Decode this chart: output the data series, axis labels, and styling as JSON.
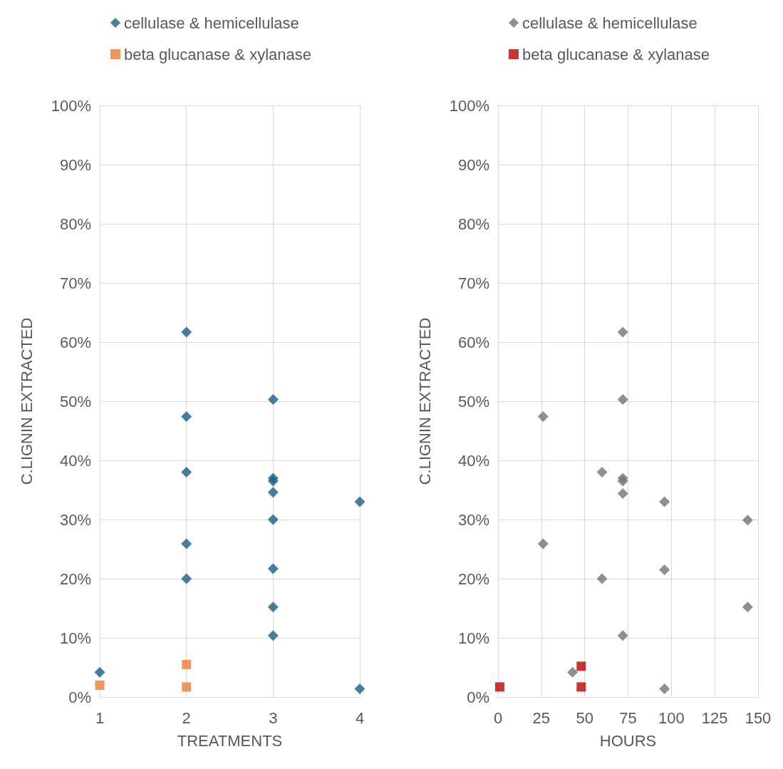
{
  "chart_data": [
    {
      "type": "scatter",
      "xlabel": "TREATMENTS",
      "ylabel": "C.LIGNIN EXTRACTED",
      "xlim": [
        1,
        4
      ],
      "xticks": [
        1,
        2,
        3,
        4
      ],
      "ylim": [
        0,
        100
      ],
      "yticks": [
        {
          "value": 0,
          "label": "0%"
        },
        {
          "value": 10,
          "label": "10%"
        },
        {
          "value": 20,
          "label": "20%"
        },
        {
          "value": 30,
          "label": "30%"
        },
        {
          "value": 40,
          "label": "40%"
        },
        {
          "value": 50,
          "label": "50%"
        },
        {
          "value": 60,
          "label": "60%"
        },
        {
          "value": 70,
          "label": "70%"
        },
        {
          "value": 80,
          "label": "80%"
        },
        {
          "value": 90,
          "label": "90%"
        },
        {
          "value": 100,
          "label": "100%"
        }
      ],
      "grid": true,
      "legend": "top",
      "series": [
        {
          "name": "cellulase & hemicellulase",
          "color": "#1a5f86",
          "marker": "diamond",
          "x": [
            1,
            2,
            2,
            2,
            2,
            2,
            3,
            3,
            3,
            3,
            3,
            3,
            3,
            3,
            4,
            4
          ],
          "values": [
            4.2,
            61.7,
            47.4,
            38.0,
            25.9,
            20.0,
            50.3,
            37.0,
            36.5,
            34.6,
            30.0,
            21.7,
            15.2,
            10.4,
            33.0,
            1.4
          ]
        },
        {
          "name": "beta glucanase & xylanase",
          "color": "#ed7d31",
          "marker": "square",
          "x": [
            1,
            2,
            2
          ],
          "values": [
            2.0,
            5.5,
            1.7
          ]
        }
      ]
    },
    {
      "type": "scatter",
      "xlabel": "HOURS",
      "ylabel": "C.LIGNIN EXTRACTED",
      "xlim": [
        0,
        150
      ],
      "xticks": [
        0,
        25,
        50,
        75,
        100,
        125,
        150
      ],
      "ylim": [
        0,
        100
      ],
      "yticks": [
        {
          "value": 0,
          "label": "0%"
        },
        {
          "value": 10,
          "label": "10%"
        },
        {
          "value": 20,
          "label": "20%"
        },
        {
          "value": 30,
          "label": "30%"
        },
        {
          "value": 40,
          "label": "40%"
        },
        {
          "value": 50,
          "label": "50%"
        },
        {
          "value": 60,
          "label": "60%"
        },
        {
          "value": 70,
          "label": "70%"
        },
        {
          "value": 80,
          "label": "80%"
        },
        {
          "value": 90,
          "label": "90%"
        },
        {
          "value": 100,
          "label": "100%"
        }
      ],
      "grid": true,
      "legend": "top",
      "series": [
        {
          "name": "cellulase & hemicellulase",
          "color": "#737373",
          "marker": "diamond",
          "x": [
            72,
            72,
            26,
            60,
            72,
            72,
            72,
            96,
            144,
            26,
            96,
            60,
            144,
            72,
            43,
            96
          ],
          "values": [
            61.7,
            50.3,
            47.4,
            38.0,
            37.0,
            36.5,
            34.4,
            33.0,
            29.9,
            25.9,
            21.5,
            20.0,
            15.2,
            10.4,
            4.2,
            1.4
          ]
        },
        {
          "name": "beta glucanase & xylanase",
          "color": "#c00000",
          "marker": "square",
          "x": [
            1,
            48,
            48
          ],
          "values": [
            1.7,
            5.2,
            1.7
          ]
        }
      ]
    }
  ]
}
